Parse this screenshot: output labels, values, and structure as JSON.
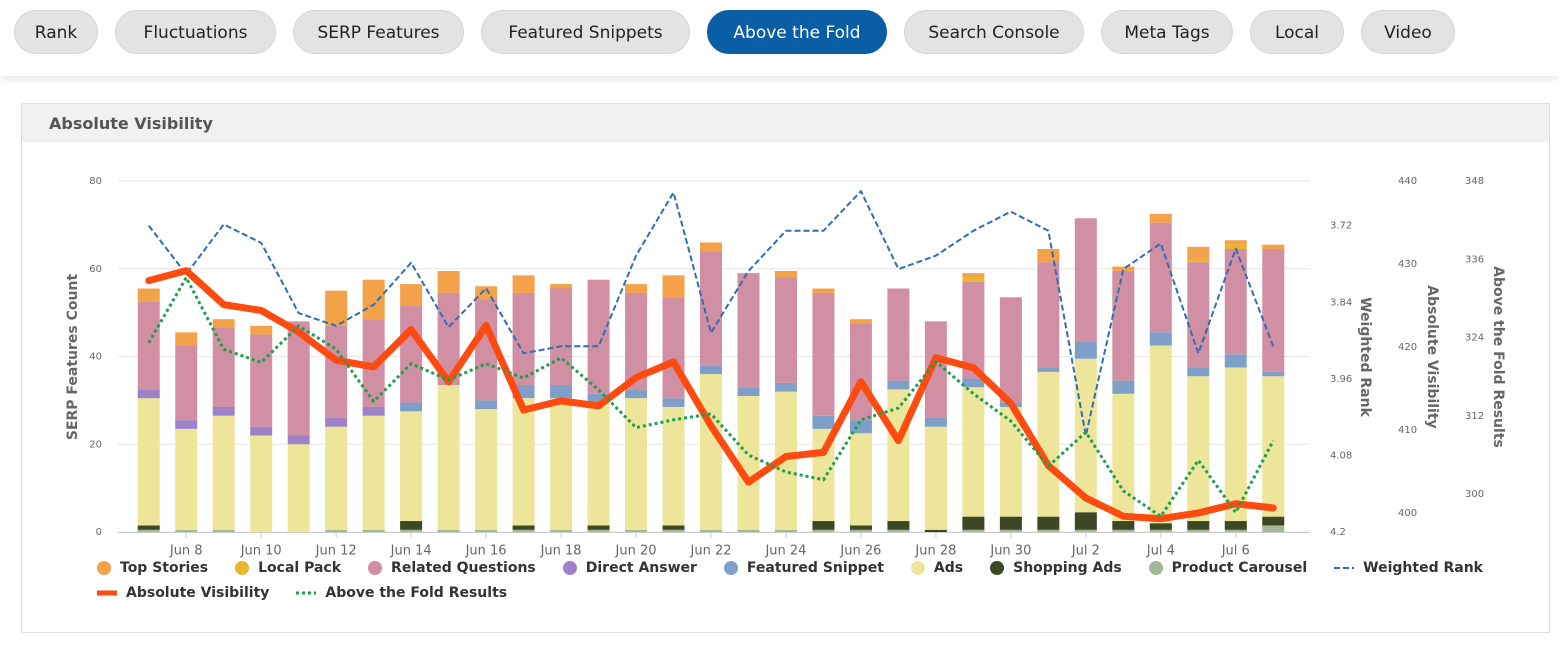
{
  "tabs": [
    {
      "label": "Rank"
    },
    {
      "label": "Fluctuations"
    },
    {
      "label": "SERP Features"
    },
    {
      "label": "Featured Snippets"
    },
    {
      "label": "Above the Fold",
      "active": true
    },
    {
      "label": "Search Console"
    },
    {
      "label": "Meta Tags"
    },
    {
      "label": "Local"
    },
    {
      "label": "Video"
    }
  ],
  "chart_data": {
    "type": "bar",
    "title": "Absolute Visibility",
    "categories": [
      null,
      "Jun 8",
      null,
      "Jun 10",
      null,
      "Jun 12",
      null,
      "Jun 14",
      null,
      "Jun 16",
      null,
      "Jun 18",
      null,
      "Jun 20",
      null,
      "Jun 22",
      null,
      "Jun 24",
      null,
      "Jun 26",
      null,
      "Jun 28",
      null,
      "Jun 30",
      null,
      "Jul 2",
      null,
      "Jul 4",
      null,
      "Jul 6",
      null
    ],
    "ylabel": "SERP Features Count",
    "ylim": [
      0,
      80
    ],
    "yticks": [
      0,
      20,
      40,
      60,
      80
    ],
    "grid": true,
    "y2label": "Weighted Rank",
    "y2lim": [
      4.2,
      3.65
    ],
    "y2ticks": [
      3.72,
      3.84,
      3.96,
      4.08,
      4.2
    ],
    "y3label": "Absolute Visibility",
    "y3lim": [
      397.7,
      440
    ],
    "y3ticks": [
      400,
      410,
      420,
      430,
      440
    ],
    "y4label": "Above the Fold Results",
    "y4lim": [
      294.2,
      348
    ],
    "y4ticks": [
      300,
      312,
      324,
      336,
      348
    ],
    "series": [
      {
        "name": "Top Stories",
        "type": "bar",
        "color": "#f4a24a",
        "values": [
          3,
          3,
          2,
          2,
          0,
          8,
          9,
          5,
          5,
          3,
          4,
          1,
          0,
          2,
          5,
          2,
          0,
          1.5,
          1,
          1,
          0,
          0,
          1,
          0,
          3,
          0,
          1,
          2,
          3,
          1,
          1
        ]
      },
      {
        "name": "Local Pack",
        "type": "bar",
        "color": "#e8b82a",
        "values": [
          0,
          0,
          0,
          0,
          0,
          0,
          0,
          0,
          0,
          0,
          0,
          0,
          0,
          0,
          0,
          0,
          0,
          0,
          0,
          0,
          0,
          0,
          1,
          0,
          0,
          0,
          0,
          0,
          0.5,
          1,
          0
        ]
      },
      {
        "name": "Related Questions",
        "type": "bar",
        "color": "#d08fa2",
        "values": [
          20,
          17,
          18,
          21,
          26,
          21,
          20,
          22,
          21,
          23,
          21,
          22,
          26,
          22,
          23,
          26,
          26,
          24,
          28,
          22,
          21,
          22,
          22,
          24,
          24,
          28,
          25,
          25,
          24,
          24,
          28
        ]
      },
      {
        "name": "Direct Answer",
        "type": "bar",
        "color": "#9e82c8",
        "values": [
          2,
          2,
          2,
          2,
          2,
          2,
          2,
          0,
          0,
          0,
          0,
          0,
          0,
          0,
          0,
          0,
          0,
          0,
          0,
          0,
          0,
          0,
          0,
          0,
          0,
          0,
          0,
          0,
          0,
          0,
          0
        ]
      },
      {
        "name": "Featured Snippet",
        "type": "bar",
        "color": "#7f9fc8",
        "values": [
          0,
          0,
          0,
          0,
          0,
          0,
          0,
          2,
          0,
          2,
          3,
          3,
          2,
          2,
          2,
          2,
          2,
          2,
          3,
          3,
          2,
          2,
          2,
          1,
          1,
          4,
          3,
          3,
          2,
          3,
          1
        ]
      },
      {
        "name": "Ads",
        "type": "bar",
        "color": "#ede59a",
        "values": [
          29,
          23,
          26,
          22,
          20,
          23.5,
          26,
          25,
          33,
          27.5,
          29,
          30,
          28,
          30,
          27,
          35.5,
          30.5,
          31.5,
          21,
          21,
          30,
          23.5,
          29.5,
          25,
          33,
          35,
          29,
          40.5,
          33,
          35,
          32
        ]
      },
      {
        "name": "Shopping Ads",
        "type": "bar",
        "color": "#3d4723",
        "values": [
          1,
          0,
          0,
          0,
          0,
          0,
          0,
          2,
          0,
          0,
          1,
          0,
          1,
          0,
          1,
          0,
          0,
          0,
          2,
          1,
          2,
          0.5,
          3,
          3,
          3,
          4,
          2,
          1.5,
          2,
          2,
          2
        ]
      },
      {
        "name": "Product Carousel",
        "type": "bar",
        "color": "#a2b896",
        "values": [
          0.5,
          0.5,
          0.5,
          0,
          0,
          0.5,
          0.5,
          0.5,
          0.5,
          0.5,
          0.5,
          0.5,
          0.5,
          0.5,
          0.5,
          0.5,
          0.5,
          0.5,
          0.5,
          0.5,
          0.5,
          0,
          0.5,
          0.5,
          0.5,
          0.5,
          0.5,
          0.5,
          0.5,
          0.5,
          1.5
        ]
      },
      {
        "name": "Weighted Rank",
        "type": "line",
        "axis": "y2",
        "style": "dashed",
        "color": "#2f6db5",
        "values": [
          3.72,
          3.796,
          3.718,
          3.747,
          3.857,
          3.877,
          3.844,
          3.778,
          3.879,
          3.818,
          3.92,
          3.909,
          3.909,
          3.767,
          3.668,
          3.888,
          3.791,
          3.728,
          3.728,
          3.666,
          3.788,
          3.767,
          3.728,
          3.698,
          3.728,
          4.049,
          3.788,
          3.748,
          3.92,
          3.756,
          3.909
        ]
      },
      {
        "name": "Absolute Visibility",
        "type": "line",
        "axis": "y3",
        "style": "solid",
        "color": "#ff4a10",
        "values": [
          428.0,
          429.2,
          425.1,
          424.4,
          421.8,
          418.4,
          417.6,
          422.1,
          415.8,
          422.6,
          412.4,
          413.5,
          412.9,
          416.3,
          418.2,
          410.5,
          403.7,
          406.8,
          407.3,
          415.8,
          408.7,
          418.7,
          417.5,
          413.2,
          405.7,
          401.8,
          399.6,
          399.3,
          400,
          401.1,
          400.6
        ]
      },
      {
        "name": "Above the Fold Results",
        "type": "line",
        "axis": "y4",
        "style": "dotted",
        "color": "#1e9e4e",
        "values": [
          323.2,
          333.2,
          322.2,
          320.2,
          325.8,
          322.2,
          314.2,
          320,
          317.5,
          320,
          317.8,
          320.9,
          316,
          310.2,
          311.4,
          312.3,
          306,
          303.4,
          302.2,
          311.4,
          313.2,
          320.3,
          315.4,
          311.2,
          304.3,
          309.5,
          300.5,
          296.6,
          305.2,
          297.2,
          308.2
        ]
      }
    ]
  }
}
